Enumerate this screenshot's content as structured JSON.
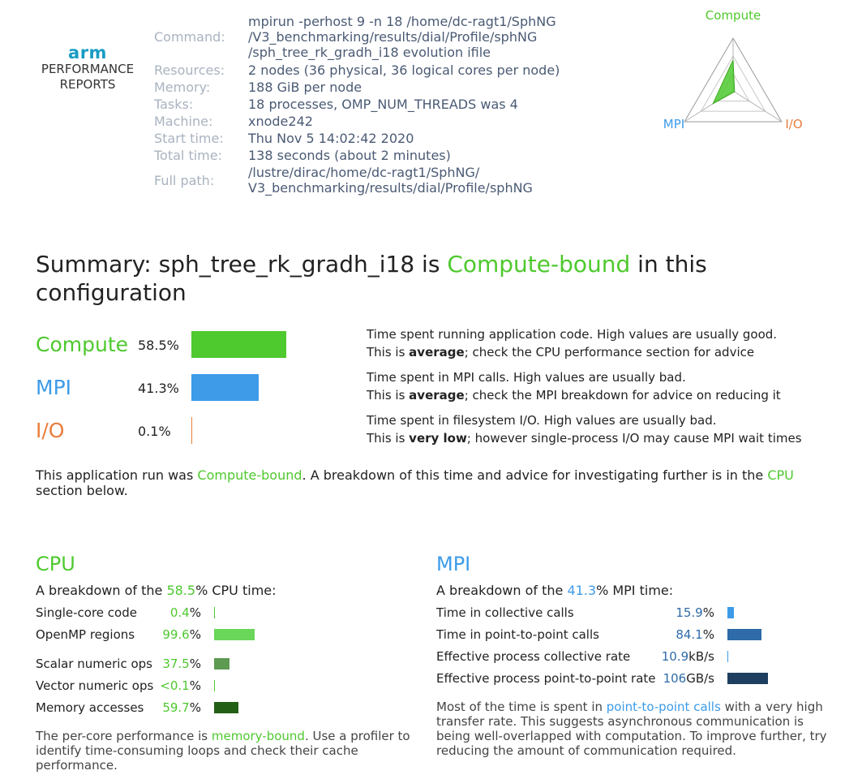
{
  "logo": {
    "brand": "arm",
    "line1": "PERFORMANCE",
    "line2": "REPORTS"
  },
  "meta": {
    "command_label": "Command:",
    "command_lines": [
      "mpirun -perhost 9 -n 18 /home/dc-ragt1/SphNG",
      "/V3_benchmarking/results/dial/Profile/sphNG",
      "/sph_tree_rk_gradh_i18 evolution ifile"
    ],
    "resources_label": "Resources:",
    "resources": "2 nodes (36 physical, 36 logical cores per node)",
    "memory_label": "Memory:",
    "memory": "188 GiB per node",
    "tasks_label": "Tasks:",
    "tasks": "18 processes, OMP_NUM_THREADS was 4",
    "machine_label": "Machine:",
    "machine": "xnode242",
    "start_label": "Start time:",
    "start": "Thu Nov 5 14:02:42 2020",
    "total_label": "Total time:",
    "total": "138 seconds (about 2 minutes)",
    "path_label": "Full path:",
    "path_lines": [
      "/lustre/dirac/home/dc-ragt1/SphNG/",
      "V3_benchmarking/results/dial/Profile/sphNG"
    ]
  },
  "radar": {
    "labels": {
      "compute": "Compute",
      "mpi": "MPI",
      "io": "I/O"
    },
    "values": {
      "compute": 0.585,
      "mpi": 0.413,
      "io": 0.001
    }
  },
  "summary": {
    "prefix": "Summary: sph_tree_rk_gradh_i18 is ",
    "highlight": "Compute-bound",
    "suffix_line1": " in this",
    "line2": "configuration"
  },
  "metrics": [
    {
      "name": "Compute",
      "pct_text": "58.5%",
      "pct": 58.5,
      "desc1": "Time spent running application code. High values are usually good.",
      "desc2_pre": "This is ",
      "desc2_bold": "average",
      "desc2_post": "; check the CPU performance section for advice"
    },
    {
      "name": "MPI",
      "pct_text": "41.3%",
      "pct": 41.3,
      "desc1": "Time spent in MPI calls. High values are usually bad.",
      "desc2_pre": "This is ",
      "desc2_bold": "average",
      "desc2_post": "; check the MPI breakdown for advice on reducing it"
    },
    {
      "name": "I/O",
      "pct_text": "0.1%",
      "pct": 0.1,
      "desc1": "Time spent in filesystem I/O. High values are usually bad.",
      "desc2_pre": "This is ",
      "desc2_bold": "very low",
      "desc2_post": "; however single-process I/O may cause MPI wait times"
    }
  ],
  "run_text": {
    "pre": "This application run was ",
    "highlight": "Compute-bound",
    "mid": ". A breakdown of this time and advice for investigating further is in the ",
    "link": "CPU",
    "post": " section below."
  },
  "cpu": {
    "title": "CPU",
    "sub_pre": "A breakdown of the ",
    "sub_val": "58.5",
    "sub_post": "% CPU time:",
    "rows": [
      {
        "label": "Single-core code",
        "value": "0.4",
        "unit": "%",
        "pct": 0.4
      },
      {
        "label": "OpenMP regions",
        "value": "99.6",
        "unit": "%",
        "pct": 99.6
      },
      {
        "label": "Scalar numeric ops",
        "value": "37.5",
        "unit": "%",
        "pct": 37.5
      },
      {
        "label": "Vector numeric ops",
        "value": "<0.1",
        "unit": "%",
        "pct": 0.05
      },
      {
        "label": "Memory accesses",
        "value": "59.7",
        "unit": "%",
        "pct": 59.7
      }
    ],
    "note_pre": "The per-core performance is ",
    "note_link": "memory-bound",
    "note_post1": ". Use a profiler to",
    "note_line2": "identify time-consuming loops and check their cache",
    "note_line3": "performance."
  },
  "mpi": {
    "title": "MPI",
    "sub_pre": "A breakdown of the ",
    "sub_val": "41.3",
    "sub_post": "% MPI time:",
    "rows": [
      {
        "label": "Time in collective calls",
        "value": "15.9",
        "unit": "%",
        "pct": 15.9
      },
      {
        "label": "Time in point-to-point calls",
        "value": "84.1",
        "unit": "%",
        "pct": 84.1
      },
      {
        "label": "Effective process collective rate",
        "value": "10.9",
        "unit": "kB/s",
        "pct": 0.5
      },
      {
        "label": "Effective process point-to-point rate",
        "value": "106",
        "unit": "GB/s",
        "pct": 100
      }
    ],
    "note_pre": "Most of the time is spent in ",
    "note_link": "point-to-point calls",
    "note_mid": " with a very high",
    "note_line2": "transfer rate. This suggests asynchronous communication is",
    "note_line3": "being well-overlapped with computation. To improve further, try",
    "note_line4": "reducing the amount of communication required."
  },
  "colors": {
    "compute": "#4ec92e",
    "mpi": "#3d9be8",
    "io": "#e87d3c",
    "cpu_single": "#4ec92e",
    "cpu_openmp": "#6ad65a",
    "cpu_scalar": "#5e9a52",
    "cpu_vector": "#4ec92e",
    "cpu_memory": "#236016",
    "mpi_collective": "#3d9be8",
    "mpi_p2p": "#2e6ba8",
    "mpi_coll_rate": "#3d9be8",
    "mpi_p2p_rate": "#1e3f60"
  }
}
